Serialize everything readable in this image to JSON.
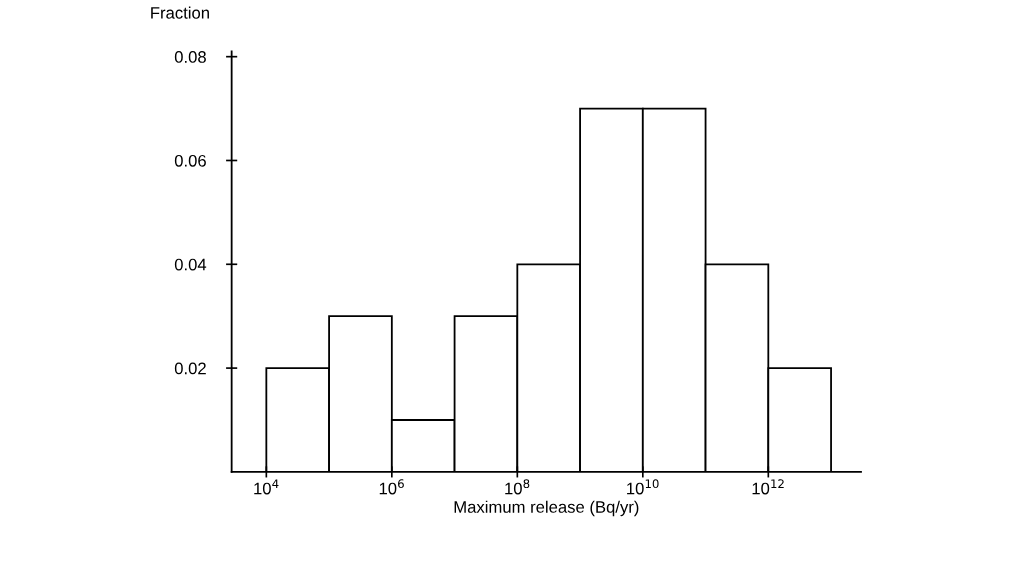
{
  "chart_data": {
    "type": "histogram",
    "xlabel": "Maximum release (Bq/yr)",
    "ylabel": "Fraction",
    "bins": [
      10000,
      100000,
      1000000,
      10000000,
      100000000,
      1000000000,
      10000000000,
      100000000000,
      1000000000000,
      10000000000000
    ],
    "values": [
      0.02,
      0.03,
      0.01,
      0.03,
      0.04,
      0.07,
      0.07,
      0.04,
      0.02
    ],
    "color": "#ffffff",
    "log": "x",
    "xlim": [
      2800,
      30000000000000
    ],
    "xticks": [
      {
        "value": 10000,
        "label": "10$^{4}$"
      },
      {
        "value": 1000000,
        "label": "10$^{6}$"
      },
      {
        "value": 100000000,
        "label": "10$^{8}$"
      },
      {
        "value": 10000000000,
        "label": "10$^{10}$"
      },
      {
        "value": 1000000000000,
        "label": "10$^{12}$"
      }
    ],
    "ylim": [
      0,
      0.081
    ],
    "yticks": [
      0.02,
      0.04,
      0.06,
      0.08
    ],
    "grid": false,
    "legend": false
  }
}
